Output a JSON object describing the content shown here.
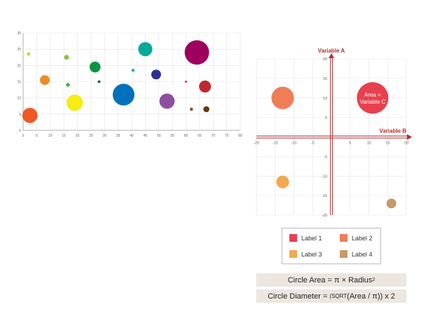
{
  "chart_data": [
    {
      "type": "scatter",
      "subtype": "bubble",
      "grid": true,
      "xlim": [
        0,
        80
      ],
      "ylim": [
        0,
        30
      ],
      "x_ticks": [
        0,
        5,
        10,
        15,
        20,
        25,
        30,
        35,
        40,
        45,
        50,
        55,
        60,
        65,
        70,
        75,
        80
      ],
      "y_ticks": [
        0,
        5,
        10,
        15,
        20,
        25,
        30
      ],
      "points": [
        {
          "x": 2,
          "y": 23.5,
          "size": 0.6,
          "color": "#c5d82a"
        },
        {
          "x": 2.5,
          "y": 4.6,
          "size": 2.8,
          "color": "#ef5a24"
        },
        {
          "x": 8,
          "y": 15.5,
          "size": 1.8,
          "color": "#f08a24"
        },
        {
          "x": 16,
          "y": 22.5,
          "size": 0.9,
          "color": "#8cc63f"
        },
        {
          "x": 16.5,
          "y": 14,
          "size": 0.7,
          "color": "#39b54a"
        },
        {
          "x": 19,
          "y": 8.5,
          "size": 3.0,
          "color": "#f7ec13"
        },
        {
          "x": 26.5,
          "y": 19.5,
          "size": 2.0,
          "color": "#0b9444"
        },
        {
          "x": 28,
          "y": 15,
          "size": 0.5,
          "color": "#006837"
        },
        {
          "x": 37,
          "y": 11,
          "size": 4.0,
          "color": "#0071bc"
        },
        {
          "x": 40.5,
          "y": 18.5,
          "size": 0.6,
          "color": "#29abe2"
        },
        {
          "x": 45,
          "y": 25,
          "size": 2.6,
          "color": "#00a99d"
        },
        {
          "x": 49,
          "y": 17.2,
          "size": 1.8,
          "color": "#2e3192"
        },
        {
          "x": 53,
          "y": 9,
          "size": 2.8,
          "color": "#8e4fa3"
        },
        {
          "x": 60,
          "y": 15,
          "size": 0.4,
          "color": "#ed1e79"
        },
        {
          "x": 62,
          "y": 6.5,
          "size": 0.6,
          "color": "#8b5a2b"
        },
        {
          "x": 64,
          "y": 24,
          "size": 4.5,
          "color": "#9e005d"
        },
        {
          "x": 67,
          "y": 13.5,
          "size": 2.2,
          "color": "#c1272d"
        },
        {
          "x": 67.5,
          "y": 6.5,
          "size": 1.1,
          "color": "#603813"
        }
      ]
    },
    {
      "type": "scatter",
      "subtype": "bubble",
      "grid": true,
      "xlim": [
        -20,
        20
      ],
      "ylim": [
        -20,
        20
      ],
      "x_ticks": [
        -20,
        -15,
        -10,
        -5,
        0,
        5,
        10,
        15,
        20
      ],
      "y_ticks": [
        -20,
        -15,
        -10,
        -5,
        0,
        5,
        10,
        15,
        20
      ],
      "xlabel": "Variable B",
      "ylabel": "Variable A",
      "points": [
        {
          "x": -13,
          "y": 10,
          "size": 3.0,
          "color": "#ef7e58",
          "label": ""
        },
        {
          "x": 11,
          "y": 10,
          "size": 4.2,
          "color": "#e8404f",
          "label_lines": [
            "Area =",
            "Variable C"
          ]
        },
        {
          "x": -13,
          "y": -11.5,
          "size": 1.7,
          "color": "#f2a950",
          "label": ""
        },
        {
          "x": 16,
          "y": -17,
          "size": 1.3,
          "color": "#c49a6c",
          "label": ""
        }
      ],
      "axis_color": "#b72b2b"
    }
  ],
  "legend": {
    "items": [
      {
        "label": "Label 1",
        "color": "#e8404f"
      },
      {
        "label": "Label 2",
        "color": "#ef7e58"
      },
      {
        "label": "Label 3",
        "color": "#f2a950"
      },
      {
        "label": "Label 4",
        "color": "#c49a6c"
      }
    ]
  },
  "formulas": {
    "area": {
      "text": "Circle Area = π × Radius",
      "exponent": "2"
    },
    "diameter": {
      "prefix": "Circle Diameter = ",
      "func": "(SQRT",
      "suffix": "(Area / π)) x 2"
    }
  }
}
